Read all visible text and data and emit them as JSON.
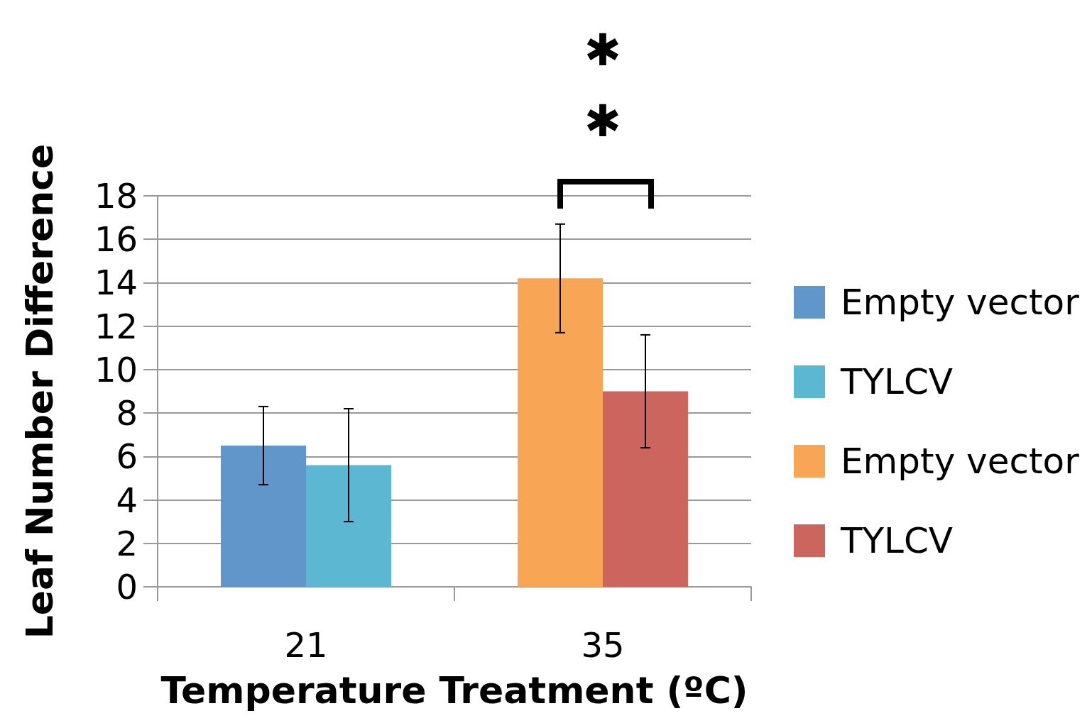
{
  "chart_data": {
    "type": "bar",
    "xlabel": "Temperature Treatment (ºC)",
    "ylabel": "Leaf Number Difference",
    "categories": [
      "21",
      "35"
    ],
    "series": [
      {
        "name": "Empty vector",
        "color": "#6096c9",
        "values": [
          6.5,
          null
        ],
        "errors": [
          1.8,
          null
        ]
      },
      {
        "name": "TYLCV",
        "color": "#5cb8d2",
        "values": [
          5.6,
          null
        ],
        "errors": [
          2.6,
          null
        ]
      },
      {
        "name": "Empty vector",
        "color": "#f8a656",
        "values": [
          null,
          14.2
        ],
        "errors": [
          null,
          2.5
        ]
      },
      {
        "name": "TYLCV",
        "color": "#cc655e",
        "values": [
          null,
          9.0
        ],
        "errors": [
          null,
          2.6
        ]
      }
    ],
    "ylim": [
      0,
      18
    ],
    "yticks": [
      0,
      2,
      4,
      6,
      8,
      10,
      12,
      14,
      16,
      18
    ],
    "grid": "y",
    "legend": "right",
    "annotations": [
      "✱✱"
    ]
  }
}
